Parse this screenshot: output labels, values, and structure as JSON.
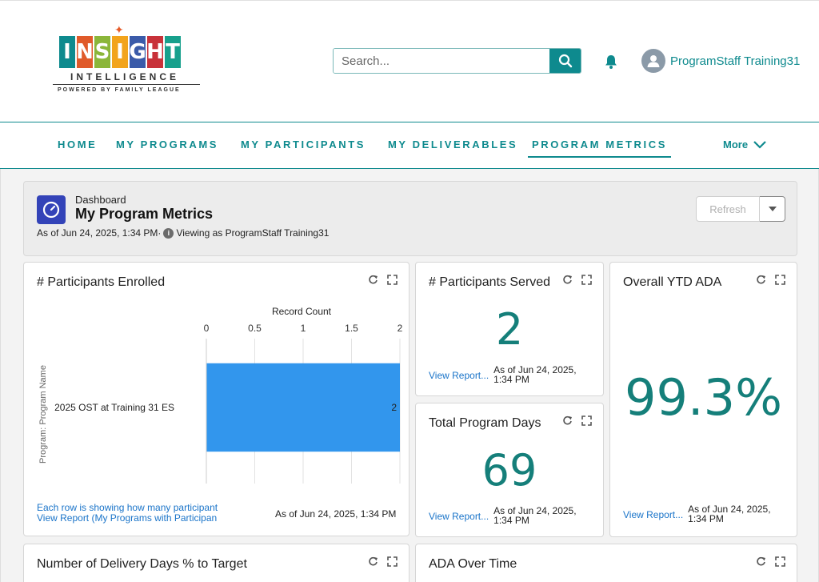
{
  "brand": {
    "logo_letters": [
      "I",
      "N",
      "S",
      "I",
      "G",
      "H",
      "T"
    ],
    "logo_colors": [
      "#0e8a8e",
      "#e05a2a",
      "#8bb63a",
      "#f2a41c",
      "#3b5ba9",
      "#c8323a",
      "#17a08c"
    ],
    "tagline": "INTELLIGENCE",
    "powered_by": "POWERED BY FAMILY LEAGUE"
  },
  "header": {
    "search_placeholder": "Search...",
    "user_name": "ProgramStaff Training31"
  },
  "nav": {
    "items": [
      "HOME",
      "MY PROGRAMS",
      "MY PARTICIPANTS",
      "MY DELIVERABLES",
      "PROGRAM METRICS"
    ],
    "active": "PROGRAM METRICS",
    "more_label": "More"
  },
  "dashboard": {
    "type_label": "Dashboard",
    "title": "My Program Metrics",
    "as_of": "As of Jun 24, 2025, 1:34 PM·",
    "viewing_as": "Viewing as ProgramStaff Training31",
    "refresh_label": "Refresh"
  },
  "cards": {
    "enrolled": {
      "title": "# Participants Enrolled",
      "footnote_1": "Each row is showing how many participant",
      "footnote_2": "View Report (My Programs with Participan",
      "as_of": "As of Jun 24, 2025, 1:34 PM"
    },
    "served": {
      "title": "# Participants Served",
      "value": "2",
      "view_report": "View Report...",
      "as_of_1": "As of Jun 24, 2025,",
      "as_of_2": "1:34 PM"
    },
    "days": {
      "title": "Total Program Days",
      "value": "69",
      "view_report": "View Report...",
      "as_of_1": "As of Jun 24, 2025,",
      "as_of_2": "1:34 PM"
    },
    "ada": {
      "title": "Overall YTD ADA",
      "value": "99.3%",
      "view_report": "View Report...",
      "as_of_1": "As of Jun 24, 2025,",
      "as_of_2": "1:34 PM"
    },
    "delivery": {
      "title": "Number of Delivery Days % to Target"
    },
    "ada_time": {
      "title": "ADA Over Time"
    }
  },
  "colors": {
    "accent": "#0e8a8e",
    "bar": "#3296ed",
    "metric": "#157f7a",
    "link": "#1a74c9"
  },
  "chart_data": {
    "type": "bar",
    "orientation": "horizontal",
    "title": "",
    "xlabel": "Record Count",
    "ylabel": "Program: Program Name",
    "categories": [
      "2025 OST at Training 31 ES"
    ],
    "values": [
      2
    ],
    "xlim": [
      0,
      2
    ],
    "x_ticks": [
      "0",
      "0.5",
      "1",
      "1.5",
      "2"
    ],
    "grid": true
  }
}
